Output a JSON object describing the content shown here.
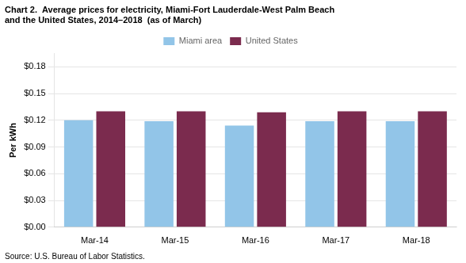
{
  "chart_data": {
    "type": "bar",
    "title": [
      "Chart 2.  Average prices for electricity, Miami-Fort Lauderdale-West Palm Beach",
      "and the United States, 2014–2018  (as of March)"
    ],
    "ylabel": "Per kWh",
    "annotations": [
      "Source: U.S. Bureau of Labor Statistics."
    ],
    "categories": [
      "Mar-14",
      "Mar-15",
      "Mar-16",
      "Mar-17",
      "Mar-18"
    ],
    "series": [
      {
        "name": "Miami area",
        "color": "#92C5E8",
        "values": [
          0.12,
          0.119,
          0.114,
          0.119,
          0.119
        ]
      },
      {
        "name": "United States",
        "color": "#7B2B4E",
        "values": [
          0.13,
          0.13,
          0.129,
          0.13,
          0.13
        ]
      }
    ],
    "ylim": [
      0.0,
      0.195
    ],
    "yticks": [
      {
        "value": 0.0,
        "label": "$0.00"
      },
      {
        "value": 0.03,
        "label": "$0.03"
      },
      {
        "value": 0.06,
        "label": "$0.06"
      },
      {
        "value": 0.09,
        "label": "$0.09"
      },
      {
        "value": 0.12,
        "label": "$0.12"
      },
      {
        "value": 0.15,
        "label": "$0.15"
      },
      {
        "value": 0.18,
        "label": "$0.18"
      }
    ],
    "grid": true,
    "legend": "top"
  }
}
